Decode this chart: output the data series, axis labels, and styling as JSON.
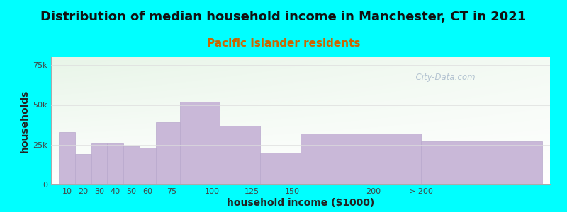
{
  "title": "Distribution of median household income in Manchester, CT in 2021",
  "subtitle": "Pacific Islander residents",
  "xlabel": "household income ($1000)",
  "ylabel": "households",
  "background_color": "#00FFFF",
  "bar_color": "#c9b8d8",
  "bar_edge_color": "#b8a8cc",
  "values": [
    33000,
    19000,
    26000,
    26000,
    24000,
    23000,
    39000,
    52000,
    37000,
    20000,
    32000,
    27000
  ],
  "bar_lefts": [
    5,
    15,
    25,
    35,
    45,
    55,
    65,
    80,
    105,
    130,
    155,
    230
  ],
  "bar_widths": [
    10,
    10,
    10,
    10,
    10,
    10,
    15,
    25,
    25,
    25,
    75,
    75
  ],
  "yticks": [
    0,
    25000,
    50000,
    75000
  ],
  "ytick_labels": [
    "0",
    "25k",
    "50k",
    "75k"
  ],
  "ylim": [
    0,
    80000
  ],
  "xtick_positions": [
    10,
    20,
    30,
    40,
    50,
    60,
    75,
    100,
    125,
    150,
    200,
    230
  ],
  "xtick_labels": [
    "10",
    "20",
    "30",
    "40",
    "50",
    "60",
    "75",
    "100",
    "125",
    "150",
    "200",
    "> 200"
  ],
  "xlim": [
    0,
    310
  ],
  "title_fontsize": 13,
  "subtitle_fontsize": 11,
  "axis_label_fontsize": 10,
  "tick_fontsize": 8,
  "watermark": "  City-Data.com",
  "subtitle_color": "#cc6600",
  "title_color": "#111111"
}
